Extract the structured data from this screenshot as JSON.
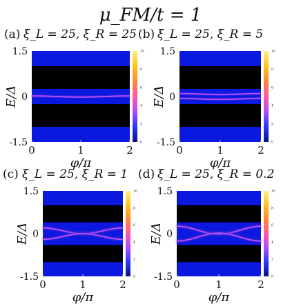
{
  "figure": {
    "title": "μ_FM/t = 1",
    "colors": {
      "background": "#0b18e0",
      "dark_band": "#000000",
      "state_line": "#c64cff",
      "state_glow": "#3a2bd0",
      "colorbar_stops": [
        "#0a1080",
        "#2a38ff",
        "#b04cff",
        "#ff58a8",
        "#ff8a30",
        "#ffc21a",
        "#fff08a"
      ]
    }
  },
  "chart_data": [
    {
      "type": "heatmap",
      "panel_label": "(a)",
      "title": "ξ_L = 25, ξ_R = 25",
      "xlabel": "φ/π",
      "ylabel": "E/Δ",
      "xlim": [
        0,
        2
      ],
      "ylim": [
        -1.5,
        1.5
      ],
      "x_ticks": [
        "0",
        "1",
        "2"
      ],
      "y_ticks": [
        "1.5",
        "0",
        "-1.5"
      ],
      "gap_edges": [
        -1.0,
        -0.25,
        0.25,
        1.0
      ],
      "states": [
        {
          "amplitude": 0.02,
          "offset": 0.0
        }
      ],
      "colorbar": {
        "range": [
          0,
          10
        ],
        "ticks": [
          "0",
          "2",
          "4",
          "6",
          "8",
          "10"
        ]
      }
    },
    {
      "type": "heatmap",
      "panel_label": "(b)",
      "title": "ξ_L = 25, ξ_R = 5",
      "xlabel": "φ/π",
      "ylabel": "E/Δ",
      "xlim": [
        0,
        2
      ],
      "ylim": [
        -1.5,
        1.5
      ],
      "x_ticks": [
        "0",
        "1",
        "2"
      ],
      "y_ticks": [
        "1.5",
        "0",
        "-1.5"
      ],
      "gap_edges": [
        -1.0,
        -0.25,
        0.25,
        1.0
      ],
      "states": [
        {
          "amplitude": 0.02,
          "offset": 0.08
        },
        {
          "amplitude": 0.02,
          "offset": -0.08
        }
      ],
      "colorbar": {
        "range": [
          0,
          10
        ],
        "ticks": [
          "0",
          "2",
          "4",
          "6",
          "8",
          "10"
        ]
      }
    },
    {
      "type": "heatmap",
      "panel_label": "(c)",
      "title": "ξ_L = 25, ξ_R = 1",
      "xlabel": "φ/π",
      "ylabel": "E/Δ",
      "xlim": [
        0,
        2
      ],
      "ylim": [
        -1.5,
        1.5
      ],
      "x_ticks": [
        "0",
        "1",
        "2"
      ],
      "y_ticks": [
        "1.5",
        "0",
        "-1.5"
      ],
      "gap_edges": [
        -1.0,
        -0.4,
        0.4,
        1.0
      ],
      "states": [
        {
          "amplitude": 0.1,
          "offset": 0.1
        },
        {
          "amplitude": -0.1,
          "offset": -0.1
        }
      ],
      "colorbar": {
        "range": [
          0,
          10
        ],
        "ticks": [
          "0",
          "2",
          "4",
          "6",
          "8",
          "10"
        ]
      }
    },
    {
      "type": "heatmap",
      "panel_label": "(d)",
      "title": "ξ_L = 25, ξ_R = 0.2",
      "xlabel": "φ/π",
      "ylabel": "E/Δ",
      "xlim": [
        0,
        2
      ],
      "ylim": [
        -1.5,
        1.5
      ],
      "x_ticks": [
        "0",
        "1",
        "2"
      ],
      "y_ticks": [
        "1.5",
        "0",
        "-1.5"
      ],
      "gap_edges": [
        -1.0,
        -0.4,
        0.4,
        1.0
      ],
      "states": [
        {
          "amplitude": 0.14,
          "offset": 0.12
        },
        {
          "amplitude": -0.14,
          "offset": -0.12
        }
      ],
      "colorbar": {
        "range": [
          0,
          10
        ],
        "ticks": [
          "0",
          "2",
          "4",
          "6",
          "8",
          "10"
        ]
      }
    }
  ]
}
